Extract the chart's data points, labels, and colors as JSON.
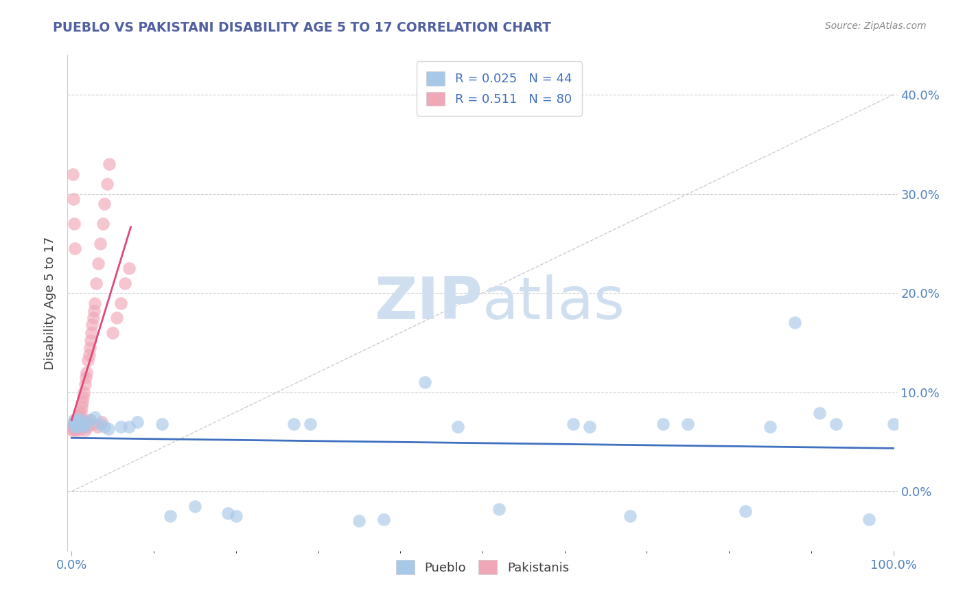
{
  "title": "PUEBLO VS PAKISTANI DISABILITY AGE 5 TO 17 CORRELATION CHART",
  "source": "Source: ZipAtlas.com",
  "ylabel": "Disability Age 5 to 17",
  "xlim": [
    -0.005,
    1.005
  ],
  "ylim": [
    -0.06,
    0.44
  ],
  "xticks": [
    0.0,
    0.2,
    0.4,
    0.6,
    0.8,
    1.0
  ],
  "xtick_labels": [
    "0.0%",
    "",
    "",
    "",
    "",
    "100.0%"
  ],
  "yticks": [
    0.0,
    0.1,
    0.2,
    0.3,
    0.4
  ],
  "ytick_labels": [
    "0.0%",
    "10.0%",
    "20.0%",
    "30.0%",
    "40.0%"
  ],
  "blue_R": 0.025,
  "blue_N": 44,
  "pink_R": 0.511,
  "pink_N": 80,
  "blue_color": "#a8c8e8",
  "pink_color": "#f0a8b8",
  "blue_line_color": "#4070c0",
  "pink_line_color": "#e04878",
  "ref_line_color": "#c0c0c0",
  "watermark_color": "#d0dff0",
  "grid_color": "#c8c8c8",
  "bg_color": "#ffffff",
  "title_color": "#5060a0",
  "axis_tick_color": "#5080c0",
  "ylabel_color": "#404040",
  "blue_x": [
    0.002,
    0.003,
    0.004,
    0.005,
    0.006,
    0.007,
    0.008,
    0.009,
    0.01,
    0.012,
    0.015,
    0.018,
    0.022,
    0.028,
    0.035,
    0.045,
    0.06,
    0.08,
    0.11,
    0.15,
    0.2,
    0.27,
    0.35,
    0.43,
    0.52,
    0.61,
    0.68,
    0.75,
    0.82,
    0.88,
    0.93,
    0.97,
    1.0,
    0.72,
    0.85,
    0.91,
    0.63,
    0.47,
    0.38,
    0.29,
    0.19,
    0.12,
    0.07,
    0.04
  ],
  "blue_y": [
    0.068,
    0.072,
    0.065,
    0.07,
    0.068,
    0.066,
    0.071,
    0.069,
    0.073,
    0.067,
    0.065,
    0.068,
    0.072,
    0.075,
    0.068,
    0.063,
    0.065,
    0.07,
    0.068,
    -0.015,
    -0.025,
    0.068,
    -0.03,
    0.11,
    -0.018,
    0.068,
    -0.025,
    0.068,
    -0.02,
    0.17,
    0.068,
    -0.028,
    0.068,
    0.068,
    0.065,
    0.079,
    0.065,
    0.065,
    -0.028,
    0.068,
    -0.022,
    -0.025,
    0.065,
    0.065
  ],
  "pink_x": [
    0.0005,
    0.001,
    0.0015,
    0.002,
    0.0025,
    0.003,
    0.003,
    0.004,
    0.004,
    0.005,
    0.005,
    0.006,
    0.006,
    0.007,
    0.007,
    0.008,
    0.008,
    0.009,
    0.009,
    0.01,
    0.01,
    0.011,
    0.012,
    0.013,
    0.014,
    0.015,
    0.016,
    0.017,
    0.018,
    0.02,
    0.021,
    0.022,
    0.023,
    0.024,
    0.025,
    0.026,
    0.027,
    0.028,
    0.03,
    0.032,
    0.035,
    0.038,
    0.04,
    0.043,
    0.046,
    0.05,
    0.055,
    0.06,
    0.065,
    0.07,
    0.002,
    0.003,
    0.004,
    0.005,
    0.006,
    0.007,
    0.008,
    0.009,
    0.011,
    0.013,
    0.015,
    0.018,
    0.022,
    0.026,
    0.031,
    0.036,
    0.001,
    0.002,
    0.003,
    0.004,
    0.005,
    0.006,
    0.007,
    0.008,
    0.009,
    0.01,
    0.012,
    0.014,
    0.016,
    0.019
  ],
  "pink_y": [
    0.062,
    0.065,
    0.063,
    0.068,
    0.066,
    0.063,
    0.07,
    0.065,
    0.072,
    0.065,
    0.068,
    0.07,
    0.068,
    0.072,
    0.068,
    0.075,
    0.072,
    0.075,
    0.068,
    0.078,
    0.072,
    0.08,
    0.085,
    0.09,
    0.095,
    0.1,
    0.108,
    0.115,
    0.12,
    0.132,
    0.138,
    0.145,
    0.152,
    0.16,
    0.168,
    0.175,
    0.182,
    0.19,
    0.21,
    0.23,
    0.25,
    0.27,
    0.29,
    0.31,
    0.33,
    0.16,
    0.175,
    0.19,
    0.21,
    0.225,
    0.065,
    0.068,
    0.065,
    0.063,
    0.065,
    0.068,
    0.07,
    0.065,
    0.065,
    0.068,
    0.065,
    0.07,
    0.072,
    0.068,
    0.065,
    0.07,
    0.32,
    0.295,
    0.27,
    0.245,
    0.062,
    0.065,
    0.068,
    0.065,
    0.062,
    0.065,
    0.065,
    0.065,
    0.062,
    0.065
  ]
}
